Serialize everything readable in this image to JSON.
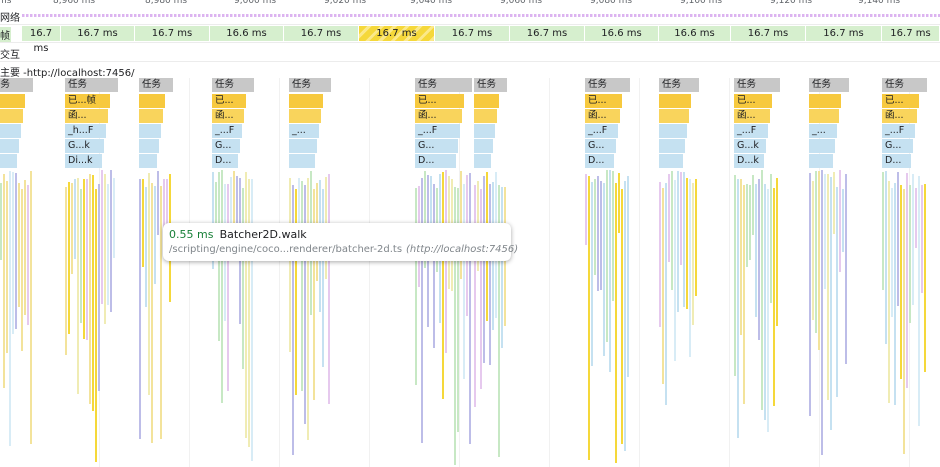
{
  "ruler": {
    "ticks": [
      "ms",
      "8,960 ms",
      "8,980 ms",
      "9,000 ms",
      "9,020 ms",
      "9,040 ms",
      "9,060 ms",
      "9,080 ms",
      "9,100 ms",
      "9,120 ms",
      "9,140 ms"
    ]
  },
  "tracks": {
    "network_label": "网络",
    "frames_label": "帧",
    "interactions_label": "交互",
    "main_label": "主要 -http://localhost:7456/"
  },
  "frames": [
    {
      "label": "16.7 ms",
      "dropped": false
    },
    {
      "label": "16.7 ms",
      "dropped": false
    },
    {
      "label": "16.7 ms",
      "dropped": false
    },
    {
      "label": "16.6 ms",
      "dropped": false
    },
    {
      "label": "16.7 ms",
      "dropped": false
    },
    {
      "label": "16.7 ms",
      "dropped": true
    },
    {
      "label": "16.7 ms",
      "dropped": false
    },
    {
      "label": "16.7 ms",
      "dropped": false
    },
    {
      "label": "16.6 ms",
      "dropped": false
    },
    {
      "label": "16.6 ms",
      "dropped": false
    },
    {
      "label": "16.7 ms",
      "dropped": false
    },
    {
      "label": "16.7 ms",
      "dropped": false
    },
    {
      "label": "16.7 ms",
      "dropped": false
    }
  ],
  "tasks": [
    {
      "task": "任务",
      "l2": "",
      "l3": "",
      "l4": "",
      "l5": "",
      "l6": ""
    },
    {
      "task": "任务",
      "l2": "已...帧",
      "l3": "函...",
      "l4": "_h...F",
      "l5": "G...k",
      "l6": "Di...k"
    },
    {
      "task": "任务",
      "l2": "",
      "l3": "",
      "l4": "",
      "l5": "",
      "l6": ""
    },
    {
      "task": "任务",
      "l2": "已...",
      "l3": "函...",
      "l4": "_...F",
      "l5": "G...",
      "l6": "D..."
    },
    {
      "task": "任务",
      "l2": "",
      "l3": "",
      "l4": "_...",
      "l5": "",
      "l6": ""
    },
    {
      "task": "任务",
      "l2": "已...",
      "l3": "函...",
      "l4": "_...F",
      "l5": "G...",
      "l6": "D..."
    },
    {
      "task": "任务",
      "l2": "",
      "l3": "",
      "l4": "",
      "l5": "",
      "l6": ""
    },
    {
      "task": "任务",
      "l2": "已...",
      "l3": "函...",
      "l4": "_...F",
      "l5": "G...",
      "l6": "D..."
    },
    {
      "task": "任务",
      "l2": "",
      "l3": "",
      "l4": "",
      "l5": "",
      "l6": ""
    },
    {
      "task": "任务",
      "l2": "已...",
      "l3": "函...",
      "l4": "_...F",
      "l5": "G...k",
      "l6": "D...k"
    },
    {
      "task": "任务",
      "l2": "",
      "l3": "",
      "l4": "_...",
      "l5": "",
      "l6": ""
    },
    {
      "task": "任务",
      "l2": "已...",
      "l3": "函...",
      "l4": "_...F",
      "l5": "G...",
      "l6": "D..."
    }
  ],
  "tooltip": {
    "duration": "0.55 ms",
    "function_name": "Batcher2D.walk",
    "url": "/scripting/engine/coco...renderer/batcher-2d.ts",
    "origin": "(http://localhost:7456)"
  },
  "colors": {
    "frame_ok": "#d6efce",
    "frame_dropped": "#f5d83a",
    "task": "#c8c8c8",
    "script": "#f7c93e",
    "render": "#c5e1f1",
    "network": "#dcb4f0"
  }
}
